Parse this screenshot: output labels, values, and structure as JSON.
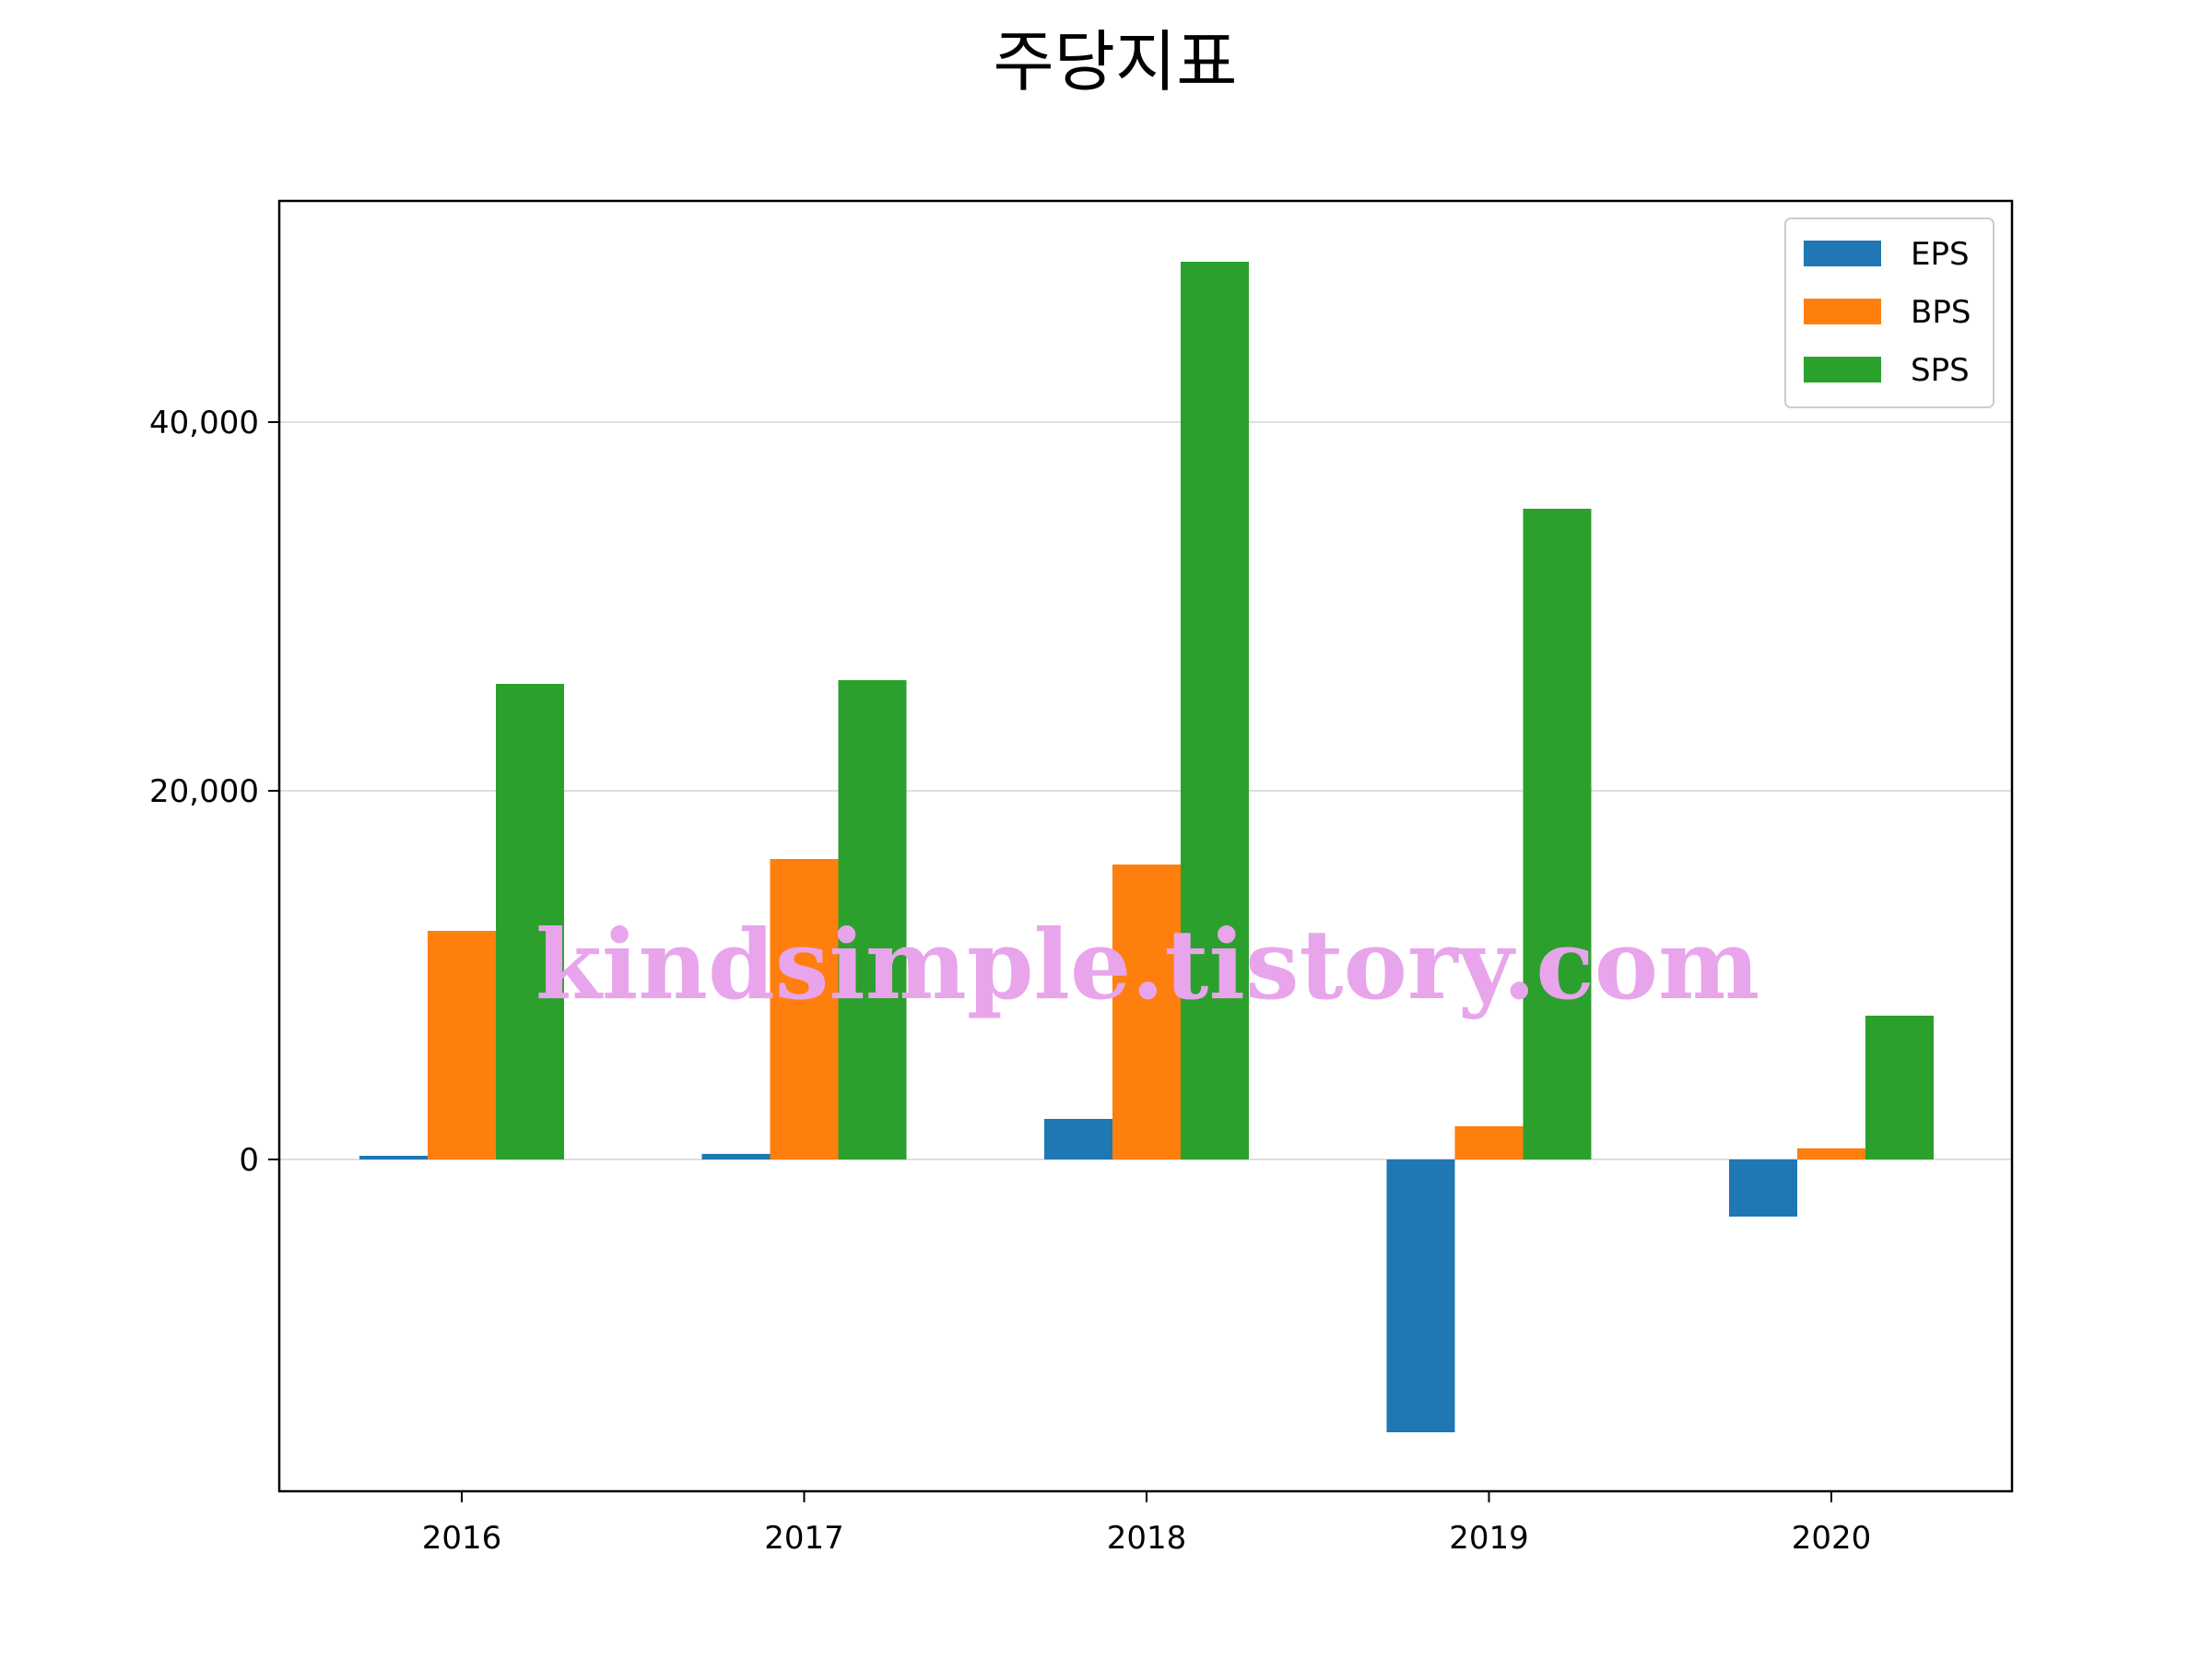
{
  "chart_data": {
    "type": "bar",
    "title": "주당지표",
    "xlabel": "",
    "ylabel": "",
    "categories": [
      "2016",
      "2017",
      "2018",
      "2019",
      "2020"
    ],
    "series": [
      {
        "name": "EPS",
        "color": "#1f77b4",
        "values": [
          200,
          300,
          2200,
          -14800,
          -3100
        ]
      },
      {
        "name": "BPS",
        "color": "#ff7f0e",
        "values": [
          12400,
          16300,
          16000,
          1800,
          600
        ]
      },
      {
        "name": "SPS",
        "color": "#2ca02c",
        "values": [
          25800,
          26000,
          48700,
          35300,
          7800
        ]
      }
    ],
    "ylim": [
      -18000,
      52000
    ],
    "yticks": [
      0,
      20000,
      40000
    ],
    "ytick_labels": [
      "0",
      "20,000",
      "40,000"
    ],
    "grid": "y",
    "legend_position": "top-right"
  },
  "watermark": "kindsimple.tistory.com"
}
